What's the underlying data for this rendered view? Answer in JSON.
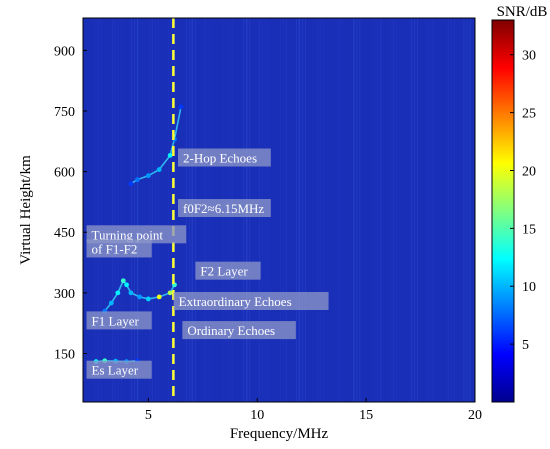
{
  "chart_data": {
    "type": "heatmap",
    "title": "",
    "xlabel": "Frequency/MHz",
    "ylabel": "Virtual Height/km",
    "xlim": [
      2,
      20
    ],
    "ylim": [
      30,
      980
    ],
    "x_ticks": [
      5,
      10,
      15,
      20
    ],
    "y_ticks": [
      150,
      300,
      450,
      600,
      750,
      900
    ],
    "colorbar": {
      "label": "SNR/dB",
      "range": [
        0,
        33
      ],
      "ticks": [
        5,
        10,
        15,
        20,
        25,
        30
      ],
      "colormap": "jet"
    },
    "background_color": "#1a2fb8",
    "marker_line": {
      "x": 6.15,
      "style": "dashed",
      "color": "#ffff33"
    },
    "traces": [
      {
        "name": "Es Layer",
        "x": [
          2.6,
          3.0,
          3.5,
          4.0,
          4.5
        ],
        "y": [
          130,
          132,
          131,
          130,
          132
        ],
        "snr": [
          12,
          14,
          10,
          9,
          6
        ]
      },
      {
        "name": "F1 Layer",
        "x": [
          3.0,
          3.3,
          3.6,
          3.85,
          4.0,
          4.2,
          4.6,
          5.0,
          5.5,
          6.0,
          6.2
        ],
        "y": [
          255,
          275,
          300,
          330,
          320,
          300,
          290,
          285,
          290,
          300,
          320
        ],
        "snr": [
          8,
          10,
          12,
          14,
          12,
          10,
          9,
          11,
          20,
          18,
          14
        ]
      },
      {
        "name": "2-Hop Echoes",
        "x": [
          4.2,
          4.5,
          5.0,
          5.5,
          6.0,
          6.2,
          6.5
        ],
        "y": [
          570,
          580,
          590,
          605,
          640,
          680,
          760
        ],
        "snr": [
          6,
          8,
          9,
          10,
          12,
          8,
          6
        ]
      }
    ],
    "annotations": [
      {
        "text": "2-Hop Echoes",
        "x": 6.5,
        "y": 625
      },
      {
        "text": "f0F2≈6.15MHz",
        "x": 6.5,
        "y": 500
      },
      {
        "text": "Turning point",
        "x": 2.3,
        "y": 435
      },
      {
        "text": "of F1-F2",
        "x": 2.3,
        "y": 400
      },
      {
        "text": "F2 Layer",
        "x": 7.3,
        "y": 345
      },
      {
        "text": "Extraordinary  Echoes",
        "x": 6.3,
        "y": 270
      },
      {
        "text": "F1 Layer",
        "x": 2.3,
        "y": 222
      },
      {
        "text": "Ordinary Echoes",
        "x": 6.7,
        "y": 198
      },
      {
        "text": "Es Layer",
        "x": 2.3,
        "y": 100
      }
    ]
  }
}
